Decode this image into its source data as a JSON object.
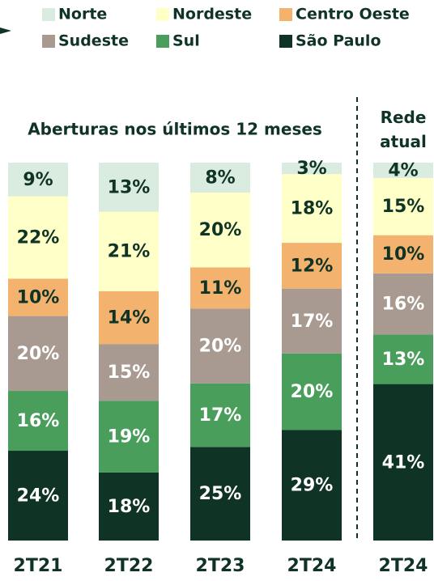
{
  "chart_data": {
    "type": "stacked_bar",
    "categories": [
      "2T21",
      "2T22",
      "2T23",
      "2T24",
      "2T24"
    ],
    "annotations": [
      "Aberturas nos últimos 12 meses",
      "Rede atual"
    ],
    "series": [
      {
        "name": "São Paulo",
        "color": "#0f3325",
        "values": [
          24,
          18,
          25,
          29,
          41
        ],
        "value_labels": [
          "24%",
          "18%",
          "25%",
          "29%",
          "41%"
        ]
      },
      {
        "name": "Sul",
        "color": "#4a9e5c",
        "values": [
          16,
          19,
          17,
          20,
          13
        ],
        "value_labels": [
          "16%",
          "19%",
          "17%",
          "20%",
          "13%"
        ]
      },
      {
        "name": "Sudeste",
        "color": "#a89a90",
        "values": [
          20,
          15,
          20,
          17,
          16
        ],
        "value_labels": [
          "20%",
          "15%",
          "20%",
          "17%",
          "16%"
        ]
      },
      {
        "name": "Centro Oeste",
        "color": "#f4b26f",
        "values": [
          10,
          14,
          11,
          12,
          10
        ],
        "value_labels": [
          "10%",
          "14%",
          "11%",
          "12%",
          "10%"
        ]
      },
      {
        "name": "Nordeste",
        "color": "#ffffc8",
        "values": [
          22,
          21,
          20,
          18,
          15
        ],
        "value_labels": [
          "22%",
          "21%",
          "20%",
          "18%",
          "15%"
        ]
      },
      {
        "name": "Norte",
        "color": "#d9ecdf",
        "values": [
          9,
          13,
          8,
          3,
          4
        ],
        "value_labels": [
          "9%",
          "13%",
          "8%",
          "3%",
          "4%"
        ]
      }
    ],
    "legend_order": [
      5,
      4,
      3,
      2,
      1,
      0
    ]
  }
}
